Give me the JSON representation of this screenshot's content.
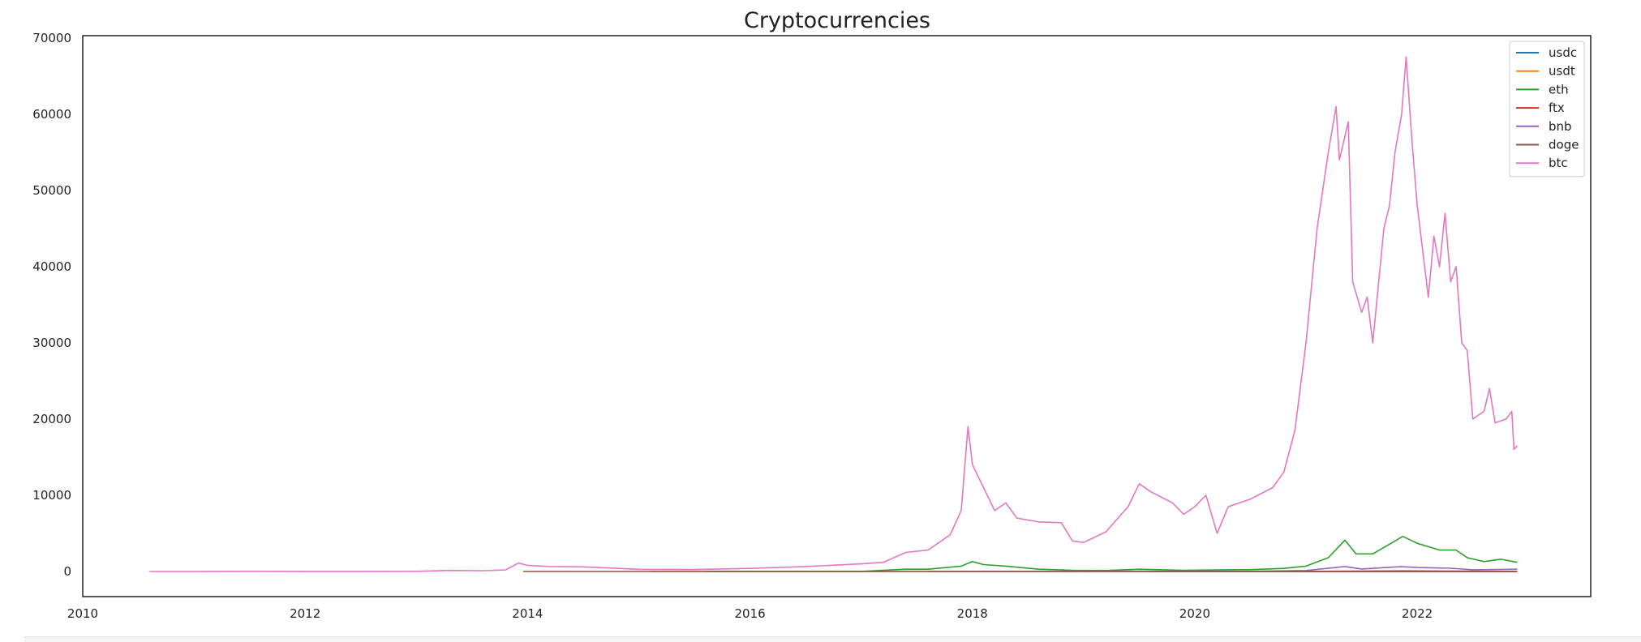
{
  "chart_data": {
    "type": "line",
    "title": "Cryptocurrencies",
    "xlabel": "",
    "ylabel": "",
    "xlim": [
      2010.0,
      2023.56
    ],
    "ylim": [
      -3300,
      70300
    ],
    "x_ticks": [
      "2010",
      "2012",
      "2014",
      "2016",
      "2018",
      "2020",
      "2022"
    ],
    "y_ticks": [
      "0",
      "10000",
      "20000",
      "30000",
      "40000",
      "50000",
      "60000",
      "70000"
    ],
    "grid": false,
    "legend_position": "top-right",
    "series": [
      {
        "name": "usdc",
        "color": "#1f77b4",
        "x": [
          2018.8,
          2019.5,
          2020.5,
          2021.5,
          2022.9
        ],
        "y": [
          1,
          1,
          1,
          1,
          1
        ]
      },
      {
        "name": "usdt",
        "color": "#ff7f0e",
        "x": [
          2015.1,
          2016.5,
          2018.0,
          2020.0,
          2022.9
        ],
        "y": [
          1,
          1,
          1,
          1,
          1
        ]
      },
      {
        "name": "eth",
        "color": "#2ca02c",
        "x": [
          2015.6,
          2016.3,
          2017.0,
          2017.4,
          2017.6,
          2017.9,
          2018.0,
          2018.1,
          2018.3,
          2018.6,
          2018.9,
          2019.2,
          2019.5,
          2019.9,
          2020.2,
          2020.5,
          2020.8,
          2021.0,
          2021.2,
          2021.35,
          2021.45,
          2021.6,
          2021.8,
          2021.87,
          2022.0,
          2022.2,
          2022.35,
          2022.45,
          2022.6,
          2022.75,
          2022.9
        ],
        "y": [
          1,
          10,
          10,
          300,
          300,
          700,
          1300,
          900,
          700,
          300,
          150,
          130,
          300,
          150,
          200,
          240,
          400,
          700,
          1800,
          4100,
          2300,
          2300,
          4000,
          4600,
          3700,
          2800,
          2800,
          1800,
          1300,
          1600,
          1200
        ]
      },
      {
        "name": "ftx",
        "color": "#d62728",
        "x": [
          2019.6,
          2020.5,
          2021.0,
          2021.5,
          2021.9,
          2022.3,
          2022.8,
          2022.9
        ],
        "y": [
          1,
          2,
          10,
          40,
          70,
          40,
          20,
          2
        ]
      },
      {
        "name": "bnb",
        "color": "#9467bd",
        "x": [
          2017.6,
          2018.0,
          2019.5,
          2020.5,
          2021.0,
          2021.35,
          2021.5,
          2021.85,
          2022.0,
          2022.3,
          2022.5,
          2022.9
        ],
        "y": [
          1,
          15,
          30,
          30,
          130,
          650,
          330,
          620,
          520,
          420,
          220,
          290
        ]
      },
      {
        "name": "doge",
        "color": "#8c564b",
        "x": [
          2013.96,
          2015.0,
          2017.0,
          2018.0,
          2019.0,
          2020.0,
          2021.0,
          2021.35,
          2021.6,
          2022.0,
          2022.9
        ],
        "y": [
          0,
          0,
          0,
          0,
          0,
          0,
          0,
          0.6,
          0.2,
          0.15,
          0.1
        ]
      },
      {
        "name": "btc",
        "color": "#e377c2",
        "x": [
          2010.6,
          2011.0,
          2011.5,
          2012.0,
          2012.5,
          2013.0,
          2013.3,
          2013.6,
          2013.8,
          2013.92,
          2014.0,
          2014.2,
          2014.5,
          2015.0,
          2015.5,
          2016.0,
          2016.5,
          2017.0,
          2017.2,
          2017.4,
          2017.6,
          2017.8,
          2017.9,
          2017.96,
          2018.0,
          2018.1,
          2018.2,
          2018.3,
          2018.4,
          2018.6,
          2018.8,
          2018.9,
          2019.0,
          2019.2,
          2019.4,
          2019.5,
          2019.6,
          2019.8,
          2019.9,
          2020.0,
          2020.1,
          2020.2,
          2020.3,
          2020.5,
          2020.7,
          2020.8,
          2020.9,
          2021.0,
          2021.1,
          2021.2,
          2021.27,
          2021.3,
          2021.38,
          2021.42,
          2021.5,
          2021.55,
          2021.6,
          2021.7,
          2021.75,
          2021.8,
          2021.86,
          2021.9,
          2021.95,
          2022.0,
          2022.05,
          2022.1,
          2022.15,
          2022.2,
          2022.25,
          2022.3,
          2022.35,
          2022.4,
          2022.45,
          2022.5,
          2022.6,
          2022.65,
          2022.7,
          2022.8,
          2022.85,
          2022.87,
          2022.9
        ],
        "y": [
          0,
          1,
          15,
          5,
          10,
          15,
          140,
          100,
          200,
          1100,
          800,
          650,
          600,
          280,
          250,
          400,
          650,
          1000,
          1200,
          2500,
          2800,
          4800,
          8000,
          19000,
          14000,
          11000,
          8000,
          9000,
          7000,
          6500,
          6400,
          4000,
          3800,
          5200,
          8500,
          11500,
          10500,
          9000,
          7500,
          8500,
          10000,
          5000,
          8500,
          9500,
          11000,
          13000,
          18500,
          30000,
          45000,
          55000,
          61000,
          54000,
          59000,
          38000,
          34000,
          36000,
          30000,
          45000,
          48000,
          55000,
          60000,
          67500,
          57000,
          48000,
          42000,
          36000,
          44000,
          40000,
          47000,
          38000,
          40000,
          30000,
          29000,
          20000,
          21000,
          24000,
          19500,
          20000,
          21000,
          16000,
          16500
        ]
      }
    ]
  }
}
